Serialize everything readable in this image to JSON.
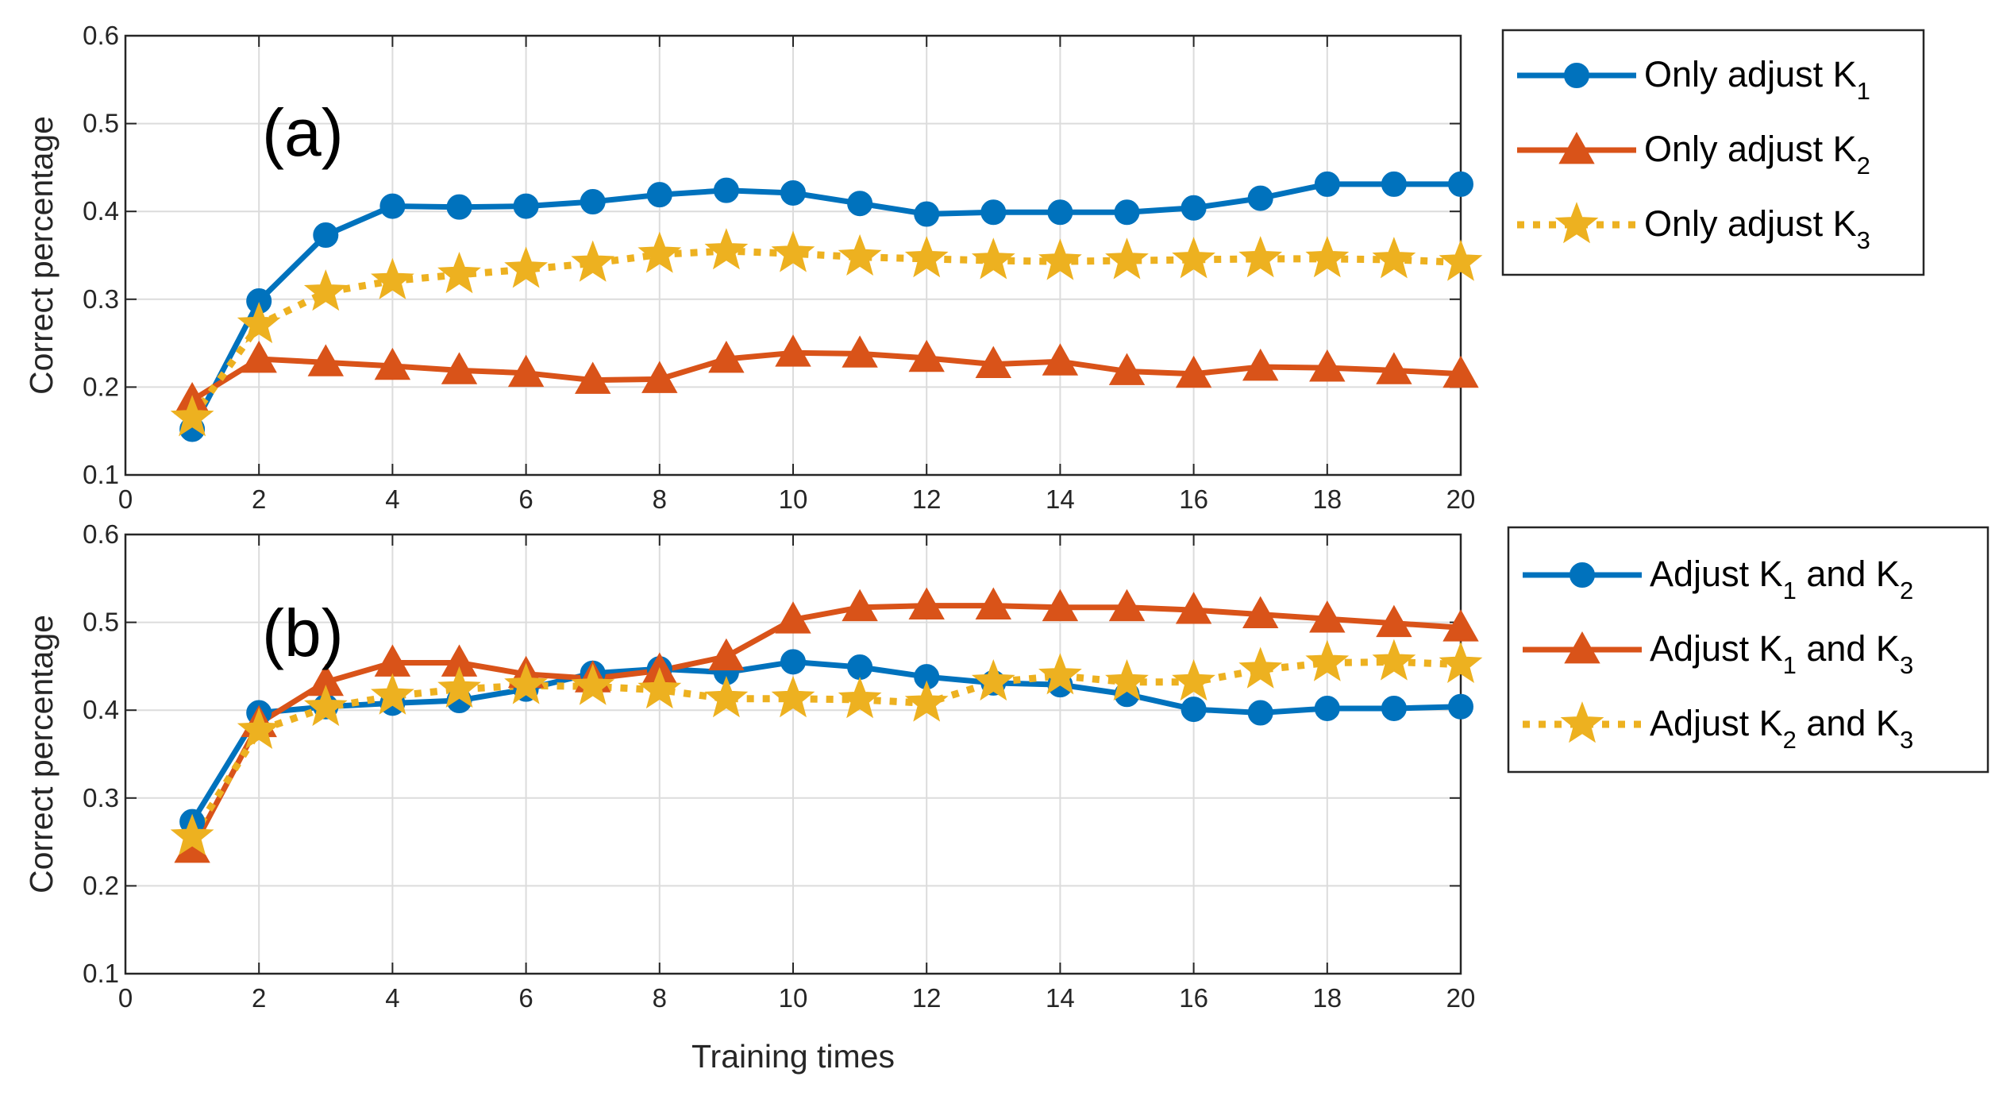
{
  "chart_data": [
    {
      "type": "line",
      "panel_label": "(a)",
      "xlabel": "",
      "ylabel": "Correct percentage",
      "xlim": [
        0,
        20
      ],
      "ylim": [
        0.1,
        0.6
      ],
      "xticks": [
        "0",
        "2",
        "4",
        "6",
        "8",
        "10",
        "12",
        "14",
        "16",
        "18",
        "20"
      ],
      "yticks": [
        "0.1",
        "0.2",
        "0.3",
        "0.4",
        "0.5",
        "0.6"
      ],
      "grid": true,
      "legend_position": "outside-right",
      "x": [
        1,
        2,
        3,
        4,
        5,
        6,
        7,
        8,
        9,
        10,
        11,
        12,
        13,
        14,
        15,
        16,
        17,
        18,
        19,
        20
      ],
      "series": [
        {
          "name": "Only adjust K1",
          "legend_text": "Only adjust K",
          "legend_sub": "1",
          "color": "#0072BD",
          "marker": "circle",
          "line": "solid",
          "values": [
            0.152,
            0.298,
            0.373,
            0.406,
            0.405,
            0.406,
            0.411,
            0.419,
            0.424,
            0.421,
            0.409,
            0.397,
            0.399,
            0.399,
            0.399,
            0.404,
            0.415,
            0.431,
            0.431,
            0.431
          ]
        },
        {
          "name": "Only adjust K2",
          "legend_text": "Only adjust K",
          "legend_sub": "2",
          "color": "#D95319",
          "marker": "triangle",
          "line": "solid",
          "values": [
            0.185,
            0.232,
            0.228,
            0.224,
            0.219,
            0.216,
            0.208,
            0.209,
            0.232,
            0.239,
            0.238,
            0.233,
            0.226,
            0.229,
            0.218,
            0.215,
            0.223,
            0.222,
            0.219,
            0.215
          ]
        },
        {
          "name": "Only adjust K3",
          "legend_text": "Only adjust K",
          "legend_sub": "3",
          "color": "#EDB120",
          "marker": "star",
          "line": "dotted",
          "values": [
            0.165,
            0.271,
            0.308,
            0.321,
            0.328,
            0.334,
            0.341,
            0.351,
            0.355,
            0.352,
            0.348,
            0.346,
            0.344,
            0.343,
            0.344,
            0.345,
            0.346,
            0.346,
            0.345,
            0.342
          ]
        }
      ]
    },
    {
      "type": "line",
      "panel_label": "(b)",
      "xlabel": "Training times",
      "ylabel": "Correct percentage",
      "xlim": [
        0,
        20
      ],
      "ylim": [
        0.1,
        0.6
      ],
      "xticks": [
        "0",
        "2",
        "4",
        "6",
        "8",
        "10",
        "12",
        "14",
        "16",
        "18",
        "20"
      ],
      "yticks": [
        "0.1",
        "0.2",
        "0.3",
        "0.4",
        "0.5",
        "0.6"
      ],
      "grid": true,
      "legend_position": "outside-right",
      "x": [
        1,
        2,
        3,
        4,
        5,
        6,
        7,
        8,
        9,
        10,
        11,
        12,
        13,
        14,
        15,
        16,
        17,
        18,
        19,
        20
      ],
      "series": [
        {
          "name": "Adjust K1 and K2",
          "legend_parts": [
            {
              "text": "Adjust K",
              "sub": false
            },
            {
              "text": "1",
              "sub": true
            },
            {
              "text": " and K",
              "sub": false
            },
            {
              "text": "2",
              "sub": true
            }
          ],
          "color": "#0072BD",
          "marker": "circle",
          "line": "solid",
          "values": [
            0.273,
            0.397,
            0.404,
            0.408,
            0.411,
            0.424,
            0.442,
            0.447,
            0.443,
            0.455,
            0.449,
            0.438,
            0.431,
            0.429,
            0.418,
            0.401,
            0.397,
            0.402,
            0.402,
            0.404
          ]
        },
        {
          "name": "Adjust K1 and K3",
          "legend_parts": [
            {
              "text": "Adjust K",
              "sub": false
            },
            {
              "text": "1",
              "sub": true
            },
            {
              "text": " and K",
              "sub": false
            },
            {
              "text": "3",
              "sub": true
            }
          ],
          "color": "#D95319",
          "marker": "triangle",
          "line": "solid",
          "values": [
            0.242,
            0.385,
            0.432,
            0.454,
            0.454,
            0.441,
            0.436,
            0.445,
            0.461,
            0.503,
            0.517,
            0.519,
            0.519,
            0.517,
            0.517,
            0.514,
            0.509,
            0.504,
            0.499,
            0.494
          ]
        },
        {
          "name": "Adjust K2 and K3",
          "legend_parts": [
            {
              "text": "Adjust K",
              "sub": false
            },
            {
              "text": "2",
              "sub": true
            },
            {
              "text": " and K",
              "sub": false
            },
            {
              "text": "3",
              "sub": true
            }
          ],
          "color": "#EDB120",
          "marker": "star",
          "line": "dotted",
          "values": [
            0.256,
            0.377,
            0.403,
            0.416,
            0.424,
            0.428,
            0.427,
            0.423,
            0.413,
            0.413,
            0.412,
            0.408,
            0.432,
            0.439,
            0.432,
            0.432,
            0.446,
            0.454,
            0.455,
            0.452
          ]
        }
      ]
    }
  ]
}
